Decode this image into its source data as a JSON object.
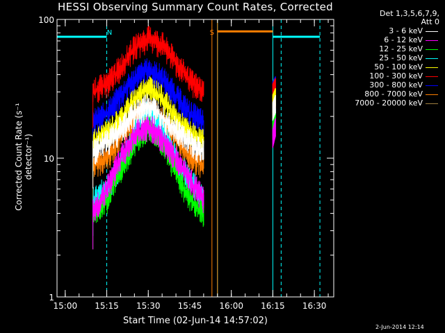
{
  "chart_data": {
    "type": "line",
    "title": "HESSI Observing Summary Count Rates, Corrected",
    "xlabel": "Start Time (02-Jun-14 14:57:02)",
    "ylabel": "Corrected Count Rate (s⁻¹ detector⁻¹)",
    "y_scale": "log",
    "ylim": [
      1,
      100
    ],
    "xlim": [
      "14:57:02",
      "16:37:00"
    ],
    "x_ticks": [
      "15:00",
      "15:15",
      "15:30",
      "15:45",
      "16:00",
      "16:15",
      "16:30"
    ],
    "y_ticks": [
      "1",
      "10",
      "100"
    ],
    "legend_header": [
      "Det 1,3,5,6,7,9,",
      "Att 0"
    ],
    "legend_position": "right, outside plot",
    "background": "#000000",
    "series": [
      {
        "name": "3 - 6 keV",
        "color": "#ffffff",
        "x": [
          "15:10",
          "15:15",
          "15:20",
          "15:25",
          "15:30",
          "15:35",
          "15:40",
          "15:45",
          "15:50"
        ],
        "y": [
          11,
          13,
          16,
          21,
          24,
          20,
          16,
          13,
          11
        ],
        "late_x": [
          "16:15",
          "16:16"
        ],
        "late_y": [
          22,
          25
        ]
      },
      {
        "name": "6 - 12 keV",
        "color": "#ff00ff",
        "x": [
          "15:10",
          "15:15",
          "15:20",
          "15:25",
          "15:30",
          "15:35",
          "15:40",
          "15:45",
          "15:50"
        ],
        "y": [
          4,
          6,
          10,
          15,
          17,
          14,
          10,
          7,
          5
        ],
        "late_x": [
          "16:15",
          "16:16"
        ],
        "late_y": [
          14,
          17
        ]
      },
      {
        "name": "12 - 25 keV",
        "color": "#00ff00",
        "x": [
          "15:10",
          "15:15",
          "15:20",
          "15:25",
          "15:30",
          "15:35",
          "15:40",
          "15:45",
          "15:50"
        ],
        "y": [
          4,
          5,
          8,
          13,
          17,
          13,
          8,
          5,
          4
        ],
        "late_x": [
          "16:15",
          "16:16"
        ],
        "late_y": [
          16,
          19
        ]
      },
      {
        "name": "25 - 50 keV",
        "color": "#00ffff",
        "x": [
          "15:10",
          "15:15",
          "15:20",
          "15:25",
          "15:30",
          "15:35",
          "15:40",
          "15:45",
          "15:50"
        ],
        "y": [
          5,
          6,
          9,
          15,
          22,
          16,
          10,
          7,
          5
        ],
        "late_x": [
          "16:15",
          "16:16"
        ],
        "late_y": [
          17,
          20
        ]
      },
      {
        "name": "50 - 100 keV",
        "color": "#ffff00",
        "x": [
          "15:10",
          "15:15",
          "15:20",
          "15:25",
          "15:30",
          "15:35",
          "15:40",
          "15:45",
          "15:50"
        ],
        "y": [
          13,
          15,
          19,
          26,
          33,
          27,
          19,
          15,
          13
        ],
        "late_x": [
          "16:15",
          "16:16"
        ],
        "late_y": [
          25,
          28
        ]
      },
      {
        "name": "100 - 300 keV",
        "color": "#ff0000",
        "x": [
          "15:10",
          "15:15",
          "15:20",
          "15:25",
          "15:30",
          "15:35",
          "15:40",
          "15:45",
          "15:50"
        ],
        "y": [
          30,
          34,
          45,
          62,
          73,
          66,
          49,
          36,
          30
        ],
        "late_x": [
          "16:15",
          "16:16"
        ],
        "late_y": [
          30,
          33
        ]
      },
      {
        "name": "300 - 800 keV",
        "color": "#0000ff",
        "x": [
          "15:10",
          "15:15",
          "15:20",
          "15:25",
          "15:30",
          "15:35",
          "15:40",
          "15:45",
          "15:50"
        ],
        "y": [
          18,
          21,
          28,
          37,
          43,
          38,
          28,
          21,
          18
        ],
        "late_x": [
          "16:15",
          "16:16"
        ],
        "late_y": [
          31,
          34
        ]
      },
      {
        "name": "800 - 7000 keV",
        "color": "#ff7f00",
        "x": [
          "15:10",
          "15:15",
          "15:20",
          "15:25",
          "15:30",
          "15:35",
          "15:40",
          "15:45",
          "15:50"
        ],
        "y": [
          9,
          10,
          14,
          19,
          22,
          19,
          14,
          10,
          9
        ],
        "late_x": [
          "16:15",
          "16:16"
        ],
        "late_y": [
          19,
          22
        ]
      },
      {
        "name": "7000 - 20000 keV",
        "color": "#a08040",
        "x": [],
        "y": [],
        "late_x": [],
        "late_y": []
      }
    ],
    "annotations": [
      {
        "text": "N",
        "color": "#00ffff",
        "x": "15:16"
      },
      {
        "text": "S",
        "color": "#ff7f00",
        "x": "15:53"
      }
    ],
    "state_bars": [
      {
        "name": "night",
        "color": "#00ffff",
        "x_start": "14:57:02",
        "x_end": "15:15",
        "y": 75
      },
      {
        "name": "SAA",
        "color": "#ff7f00",
        "x_start": "15:55",
        "x_end": "16:15",
        "y": 82
      },
      {
        "name": "night",
        "color": "#00ffff",
        "x_start": "16:15",
        "x_end": "16:32",
        "y": 75
      }
    ],
    "vlines": [
      {
        "color": "#00ffff",
        "style": "dashed",
        "x": "15:15"
      },
      {
        "color": "#00ffff",
        "style": "dashed",
        "x": "16:18"
      },
      {
        "color": "#00ffff",
        "style": "dashed",
        "x": "16:32"
      },
      {
        "color": "#00ffff",
        "style": "solid",
        "x": "15:55"
      },
      {
        "color": "#00ffff",
        "style": "solid",
        "x": "16:15"
      },
      {
        "color": "#ff7f00",
        "style": "solid",
        "x": "15:53"
      },
      {
        "color": "#ff7f00",
        "style": "solid",
        "x": "15:55"
      }
    ],
    "footer_stamp": "2-Jun-2014 12:14"
  }
}
